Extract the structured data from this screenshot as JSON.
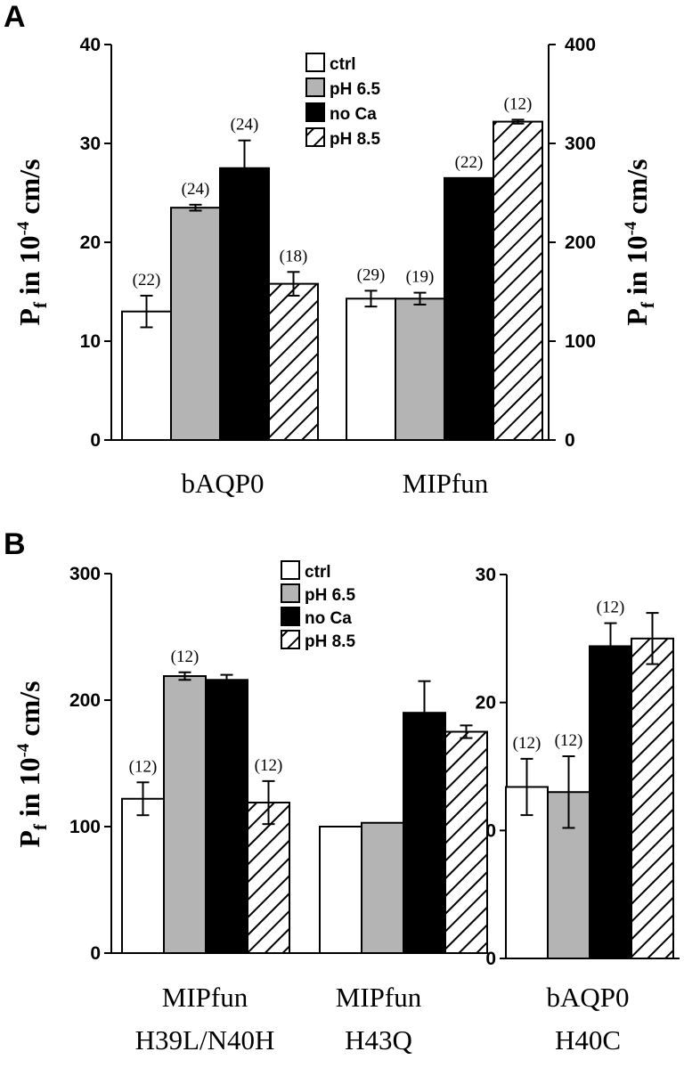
{
  "chart_data": [
    {
      "panel": "A",
      "type": "bar",
      "ylabel": "P_f in 10^-4 cm/s",
      "ylabel_parts": {
        "main": "P",
        "sub": "f",
        "mid": " in 10",
        "sup": "-4",
        "end": " cm/s"
      },
      "legend": [
        "ctrl",
        "pH 6.5",
        "no Ca",
        "pH 8.5"
      ],
      "groups": [
        {
          "category": "bAQP0",
          "axis": "left",
          "ylim": [
            0,
            40
          ],
          "yticks": [
            0,
            10,
            20,
            30,
            40
          ],
          "values": [
            13.0,
            23.5,
            27.5,
            15.8
          ],
          "errors": [
            1.6,
            0.3,
            2.8,
            1.2
          ],
          "n": [
            "(22)",
            "(24)",
            "(24)",
            "(18)"
          ]
        },
        {
          "category": "MIPfun",
          "axis": "right",
          "ylim": [
            0,
            400
          ],
          "yticks": [
            0,
            100,
            200,
            300,
            400
          ],
          "values": [
            143,
            143,
            265,
            322
          ],
          "errors": [
            8,
            6,
            0,
            2
          ],
          "n": [
            "(29)",
            "(19)",
            "(22)",
            "(12)"
          ]
        }
      ]
    },
    {
      "panel": "B",
      "type": "bar",
      "ylabel": "P_f in 10^-4 cm/s",
      "ylabel_parts": {
        "main": "P",
        "sub": "f",
        "mid": " in 10",
        "sup": "-4",
        "end": " cm/s"
      },
      "legend": [
        "ctrl",
        "pH 6.5",
        "no Ca",
        "pH 8.5"
      ],
      "groups": [
        {
          "category": [
            "MIPfun",
            "H39L/N40H"
          ],
          "axis": "left",
          "ylim": [
            0,
            300
          ],
          "yticks": [
            0,
            100,
            200,
            300
          ],
          "values": [
            122,
            219,
            216,
            119
          ],
          "errors": [
            13,
            3,
            4,
            17
          ],
          "n": [
            "(12)",
            "(12)",
            "",
            "(12)"
          ]
        },
        {
          "category": [
            "MIPfun",
            "H43Q"
          ],
          "axis": "left",
          "ylim": [
            0,
            300
          ],
          "yticks": [
            0,
            100,
            200,
            300
          ],
          "values": [
            100,
            103,
            190,
            175
          ],
          "errors": [
            0,
            0,
            25,
            5
          ],
          "n": [
            "",
            "",
            "",
            ""
          ]
        },
        {
          "category": [
            "bAQP0",
            "H40C"
          ],
          "axis": "right",
          "ylim": [
            0,
            30
          ],
          "yticks": [
            0,
            10,
            20,
            30
          ],
          "values": [
            13.4,
            13.0,
            24.4,
            25.0
          ],
          "errors": [
            2.2,
            2.8,
            1.8,
            2.0
          ],
          "n": [
            "(12)",
            "(12)",
            "(12)",
            ""
          ]
        }
      ]
    }
  ],
  "colors": {
    "ctrl": "#ffffff",
    "pH 6.5": "#b4b4b4",
    "no Ca": "#000000",
    "pH 8.5": "hatch"
  }
}
